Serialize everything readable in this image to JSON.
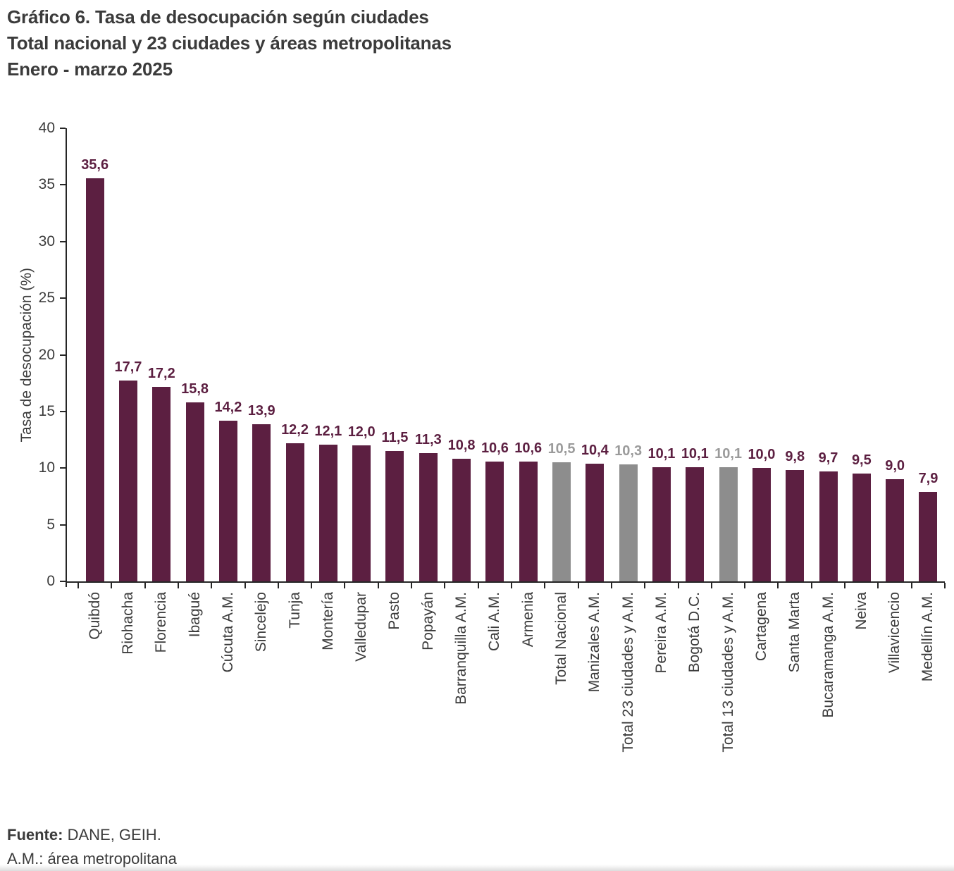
{
  "title": {
    "line1": "Gráfico 6. Tasa de desocupación según ciudades",
    "line2": "Total nacional y 23 ciudades y áreas metropolitanas",
    "line3": "Enero - marzo 2025"
  },
  "chart_data": {
    "type": "bar",
    "title": "Gráfico 6. Tasa de desocupación según ciudades — Total nacional y 23 ciudades y áreas metropolitanas — Enero - marzo 2025",
    "xlabel": "",
    "ylabel": "Tasa de desocupación (%)",
    "ylim": [
      0,
      40
    ],
    "yticks": [
      0,
      5,
      10,
      15,
      20,
      25,
      30,
      35,
      40
    ],
    "grid": false,
    "legend": null,
    "categories": [
      "Quibdó",
      "Riohacha",
      "Florencia",
      "Ibagué",
      "Cúcuta A.M.",
      "Sincelejo",
      "Tunja",
      "Montería",
      "Valledupar",
      "Pasto",
      "Popayán",
      "Barranquilla A.M.",
      "Cali A.M.",
      "Armenia",
      "Total Nacional",
      "Manizales A.M.",
      "Total 23 ciudades y A.M.",
      "Pereira A.M.",
      "Bogotá D.C.",
      "Total 13 ciudades y A.M.",
      "Cartagena",
      "Santa Marta",
      "Bucaramanga A.M.",
      "Neiva",
      "Villavicencio",
      "Medellín A.M."
    ],
    "values": [
      35.6,
      17.7,
      17.2,
      15.8,
      14.2,
      13.9,
      12.2,
      12.1,
      12.0,
      11.5,
      11.3,
      10.8,
      10.6,
      10.6,
      10.5,
      10.4,
      10.3,
      10.1,
      10.1,
      10.1,
      10.0,
      9.8,
      9.7,
      9.5,
      9.0,
      7.9
    ],
    "value_labels": [
      "35,6",
      "17,7",
      "17,2",
      "15,8",
      "14,2",
      "13,9",
      "12,2",
      "12,1",
      "12,0",
      "11,5",
      "11,3",
      "10,8",
      "10,6",
      "10,6",
      "10,5",
      "10,4",
      "10,3",
      "10,1",
      "10,1",
      "10,1",
      "10,0",
      "9,8",
      "9,7",
      "9,5",
      "9,0",
      "7,9"
    ],
    "aggregate_indices": [
      14,
      16,
      19
    ],
    "colors": {
      "bar": "#5c1f41",
      "aggregate_bar": "#8d8d8d",
      "value_label": "#5c1f41",
      "aggregate_value_label": "#9b9b9b",
      "axis": "#262626",
      "text": "#3b3b3b"
    }
  },
  "footer": {
    "source_label": "Fuente:",
    "source_text": " DANE, GEIH.",
    "note": "A.M.: área metropolitana"
  }
}
